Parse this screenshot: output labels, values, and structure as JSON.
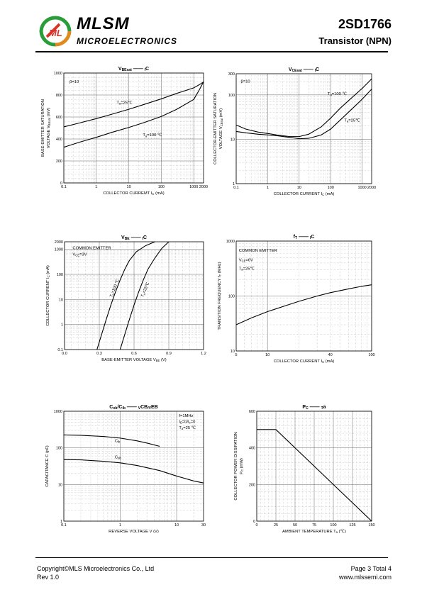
{
  "header": {
    "brand": "MLSM",
    "brand_sub": "MICROELECTRONICS",
    "logo_letters": "ML",
    "part_number": "2SD1766",
    "part_type": "Transistor  (NPN)"
  },
  "footer": {
    "copyright": "Copyright©MLS Microelectronics Co., Ltd",
    "rev": "Rev 1.0",
    "page": "Page 3 Total 4",
    "url": "www.mlssemi.com"
  },
  "chart_data": [
    {
      "id": "c1",
      "type": "line",
      "title": [
        "V",
        "BEsat",
        " —— ",
        "I",
        "C"
      ],
      "xlabel": [
        "COLLECTOR CURREMT   I",
        "C",
        "   (mA)"
      ],
      "ylabel": [
        "BASE-EMITTER SATURATION",
        "VOLTAGE   V",
        "BEsat",
        "  (mV)"
      ],
      "xscale": "log",
      "xlim": [
        0.1,
        2000
      ],
      "yscale": "linear",
      "ylim": [
        0,
        1000
      ],
      "xticks": [
        0.1,
        1,
        10,
        100,
        1000,
        2000
      ],
      "xtick_labels": [
        "0.1",
        "1",
        "10",
        "100",
        "1000",
        "2000"
      ],
      "yticks": [
        0,
        200,
        400,
        600,
        800,
        1000
      ],
      "ytick_labels": [
        "0",
        "200",
        "400",
        "600",
        "800",
        "1000"
      ],
      "notes": [
        {
          "text": "β=10",
          "x": 0.15,
          "y": 910
        }
      ],
      "series": [
        {
          "name": [
            "T",
            "a",
            "=25℃"
          ],
          "label_at": [
            4.2,
            720
          ],
          "x": [
            0.1,
            0.3,
            1,
            3,
            10,
            30,
            100,
            300,
            1000,
            1500,
            2000
          ],
          "y": [
            510,
            545,
            585,
            625,
            670,
            715,
            765,
            815,
            865,
            895,
            920
          ]
        },
        {
          "name": [
            "T",
            "a",
            "=100 ℃"
          ],
          "label_at": [
            27,
            425
          ],
          "x": [
            0.1,
            0.3,
            1,
            3,
            10,
            30,
            100,
            300,
            1000,
            1500,
            2000
          ],
          "y": [
            325,
            370,
            415,
            460,
            505,
            550,
            605,
            670,
            760,
            850,
            920
          ]
        }
      ]
    },
    {
      "id": "c2",
      "type": "line",
      "title": [
        "V",
        "CEsat",
        " —— ",
        "I",
        "C"
      ],
      "xlabel": [
        "COLLECTOR CURRENT   I",
        "C",
        "   (mA)"
      ],
      "ylabel": [
        "COLLECTOR-EMITTER SATURATION",
        "VOLTAGE  V",
        "CEsat",
        "  (mV)"
      ],
      "xscale": "log",
      "xlim": [
        0.1,
        2000
      ],
      "yscale": "log",
      "ylim": [
        1,
        300
      ],
      "xticks": [
        0.1,
        1,
        10,
        100,
        1000,
        2000
      ],
      "xtick_labels": [
        "0.1",
        "1",
        "10",
        "100",
        "1000",
        "2000"
      ],
      "yticks": [
        1,
        10,
        100,
        300
      ],
      "ytick_labels": [
        "1",
        "10",
        "100",
        "300"
      ],
      "notes": [
        {
          "text": "β=10",
          "x": 0.14,
          "y": 190
        }
      ],
      "series": [
        {
          "name": [
            "T",
            "a",
            "=100 ℃"
          ],
          "label_at": [
            80,
            100
          ],
          "x": [
            0.1,
            0.2,
            0.5,
            1,
            2,
            5,
            10,
            20,
            50,
            100,
            200,
            500,
            1000,
            2000
          ],
          "y": [
            21,
            17,
            14.5,
            13.5,
            12.5,
            11.5,
            11.5,
            13,
            19,
            30,
            50,
            90,
            140,
            230
          ]
        },
        {
          "name": [
            "T",
            "a",
            "=25℃"
          ],
          "label_at": [
            270,
            25
          ],
          "x": [
            0.1,
            0.2,
            0.5,
            1,
            2,
            5,
            10,
            20,
            50,
            100,
            200,
            500,
            1000,
            2000
          ],
          "y": [
            15,
            14,
            13,
            12.5,
            12,
            11,
            10.3,
            10.5,
            12.5,
            17,
            27,
            50,
            80,
            135
          ]
        }
      ]
    },
    {
      "id": "c3",
      "type": "line",
      "title": [
        "V",
        "BE",
        " —— ",
        "I",
        "C"
      ],
      "xlabel": [
        "BASE-EMITTER VOLTAGE  V",
        "BE",
        "  (V)"
      ],
      "ylabel": [
        "COLLECTOR CURRENT   I",
        "C",
        "  (mA)"
      ],
      "xscale": "linear",
      "xlim": [
        0,
        1.2
      ],
      "yscale": "log",
      "ylim": [
        0.1,
        2000
      ],
      "xticks": [
        0,
        0.3,
        0.6,
        0.9,
        1.2
      ],
      "xtick_labels": [
        "0.0",
        "0.3",
        "0.6",
        "0.9",
        "1.2"
      ],
      "yticks": [
        0.1,
        1,
        10,
        100,
        1000,
        2000
      ],
      "ytick_labels": [
        "0.1",
        "1",
        "10",
        "100",
        "1000",
        "2000"
      ],
      "notes": [
        {
          "text": "COMMON EMITTER",
          "x": 0.07,
          "y": 1000
        },
        {
          "text": [
            "V",
            "CE",
            "=3V"
          ],
          "x": 0.07,
          "y": 560
        }
      ],
      "series": [
        {
          "name": [
            "T",
            "a",
            "=100 ℃"
          ],
          "label_at": [
            0.41,
            12
          ],
          "label_rotate": -68,
          "x": [
            0.28,
            0.32,
            0.36,
            0.4,
            0.44,
            0.48,
            0.52,
            0.56,
            0.62,
            0.7,
            0.78
          ],
          "y": [
            0.1,
            0.4,
            1.6,
            6,
            20,
            60,
            160,
            360,
            800,
            1400,
            2000
          ]
        },
        {
          "name": [
            "T",
            "a",
            "=25℃"
          ],
          "label_at": [
            0.68,
            12
          ],
          "label_rotate": -68,
          "x": [
            0.48,
            0.52,
            0.56,
            0.6,
            0.64,
            0.68,
            0.72,
            0.78,
            0.84,
            0.9
          ],
          "y": [
            0.1,
            0.4,
            1.6,
            6,
            20,
            60,
            160,
            450,
            1100,
            2000
          ]
        }
      ]
    },
    {
      "id": "c4",
      "type": "line",
      "title": [
        "f",
        "T",
        " —— ",
        "I",
        "C"
      ],
      "xlabel": [
        "COLLECTOR CURRENT   I",
        "C",
        "   (mA)"
      ],
      "ylabel": [
        "TRANSITION FREQUENCY   f",
        "T",
        "  (MHz)"
      ],
      "xscale": "log",
      "xlim": [
        5,
        100
      ],
      "yscale": "log",
      "ylim": [
        10,
        1000
      ],
      "xticks": [
        5,
        10,
        40,
        100
      ],
      "xtick_labels": [
        "5",
        "10",
        "40",
        "100"
      ],
      "yticks": [
        10,
        100,
        1000
      ],
      "ytick_labels": [
        "10",
        "100",
        "1000"
      ],
      "notes": [
        {
          "text": "COMMON EMITTER",
          "x": 5.3,
          "y": 640
        },
        {
          "text": [
            "V",
            "CE",
            "=6V"
          ],
          "x": 5.3,
          "y": 430
        },
        {
          "text": [
            "T",
            "a",
            "=25℃"
          ],
          "x": 5.3,
          "y": 300
        }
      ],
      "series": [
        {
          "name": "",
          "x": [
            5,
            7,
            10,
            15,
            20,
            30,
            40,
            60,
            80,
            100
          ],
          "y": [
            30,
            40,
            52,
            67,
            80,
            100,
            115,
            135,
            150,
            160
          ]
        }
      ]
    },
    {
      "id": "c5",
      "type": "line",
      "title": [
        "C",
        "ob",
        "/C",
        "ib",
        " —— ",
        "V",
        "CB",
        "/V",
        "EB"
      ],
      "xlabel": [
        "REVERSE  VOLTAGE   V   (V)"
      ],
      "ylabel": [
        "CAPACITANCE   C   (pF)"
      ],
      "xscale": "log",
      "xlim": [
        0.1,
        30
      ],
      "yscale": "log",
      "ylim": [
        1,
        1000
      ],
      "xticks": [
        0.1,
        1,
        10,
        30
      ],
      "xtick_labels": [
        "0.1",
        "1",
        "10",
        "30"
      ],
      "yticks": [
        1,
        10,
        100,
        1000
      ],
      "ytick_labels": [
        "1",
        "10",
        "100",
        "1000"
      ],
      "notes": [
        {
          "text": "f=1MHz",
          "x": 11,
          "y": 700
        },
        {
          "text": [
            "I",
            "E",
            "=0/I",
            "c",
            "=0"
          ],
          "x": 11,
          "y": 480
        },
        {
          "text": [
            "T",
            "a",
            "=25 ℃"
          ],
          "x": 11,
          "y": 330
        }
      ],
      "series": [
        {
          "name": [
            "C",
            "ib"
          ],
          "label_at": [
            0.8,
            145
          ],
          "x": [
            0.1,
            0.2,
            0.5,
            1,
            2,
            3,
            5
          ],
          "y": [
            225,
            220,
            205,
            185,
            155,
            135,
            110
          ]
        },
        {
          "name": [
            "C",
            "ob"
          ],
          "label_at": [
            0.8,
            52
          ],
          "x": [
            0.1,
            0.2,
            0.5,
            1,
            2,
            5,
            10,
            20,
            30
          ],
          "y": [
            48,
            47,
            43,
            39,
            33,
            24,
            17,
            12.5,
            11
          ]
        }
      ]
    },
    {
      "id": "c6",
      "type": "line",
      "title": [
        "P",
        "C",
        " —— ",
        "T",
        "a"
      ],
      "xlabel": [
        "AMBIENT TEMPERATURE   T",
        "a",
        "   (℃)"
      ],
      "ylabel": [
        "COLLECTOR POWER DISSIPATION",
        "P",
        "C",
        "  (mW)"
      ],
      "xscale": "linear",
      "xlim": [
        0,
        150
      ],
      "yscale": "linear",
      "ylim": [
        0,
        600
      ],
      "xticks": [
        0,
        25,
        50,
        75,
        100,
        125,
        150
      ],
      "xtick_labels": [
        "0",
        "25",
        "50",
        "75",
        "100",
        "125",
        "150"
      ],
      "yticks": [
        0,
        200,
        400,
        600
      ],
      "ytick_labels": [
        "0",
        "200",
        "400",
        "600"
      ],
      "notes": [],
      "series": [
        {
          "name": "",
          "x": [
            0,
            25,
            150
          ],
          "y": [
            500,
            500,
            0
          ]
        }
      ]
    }
  ]
}
